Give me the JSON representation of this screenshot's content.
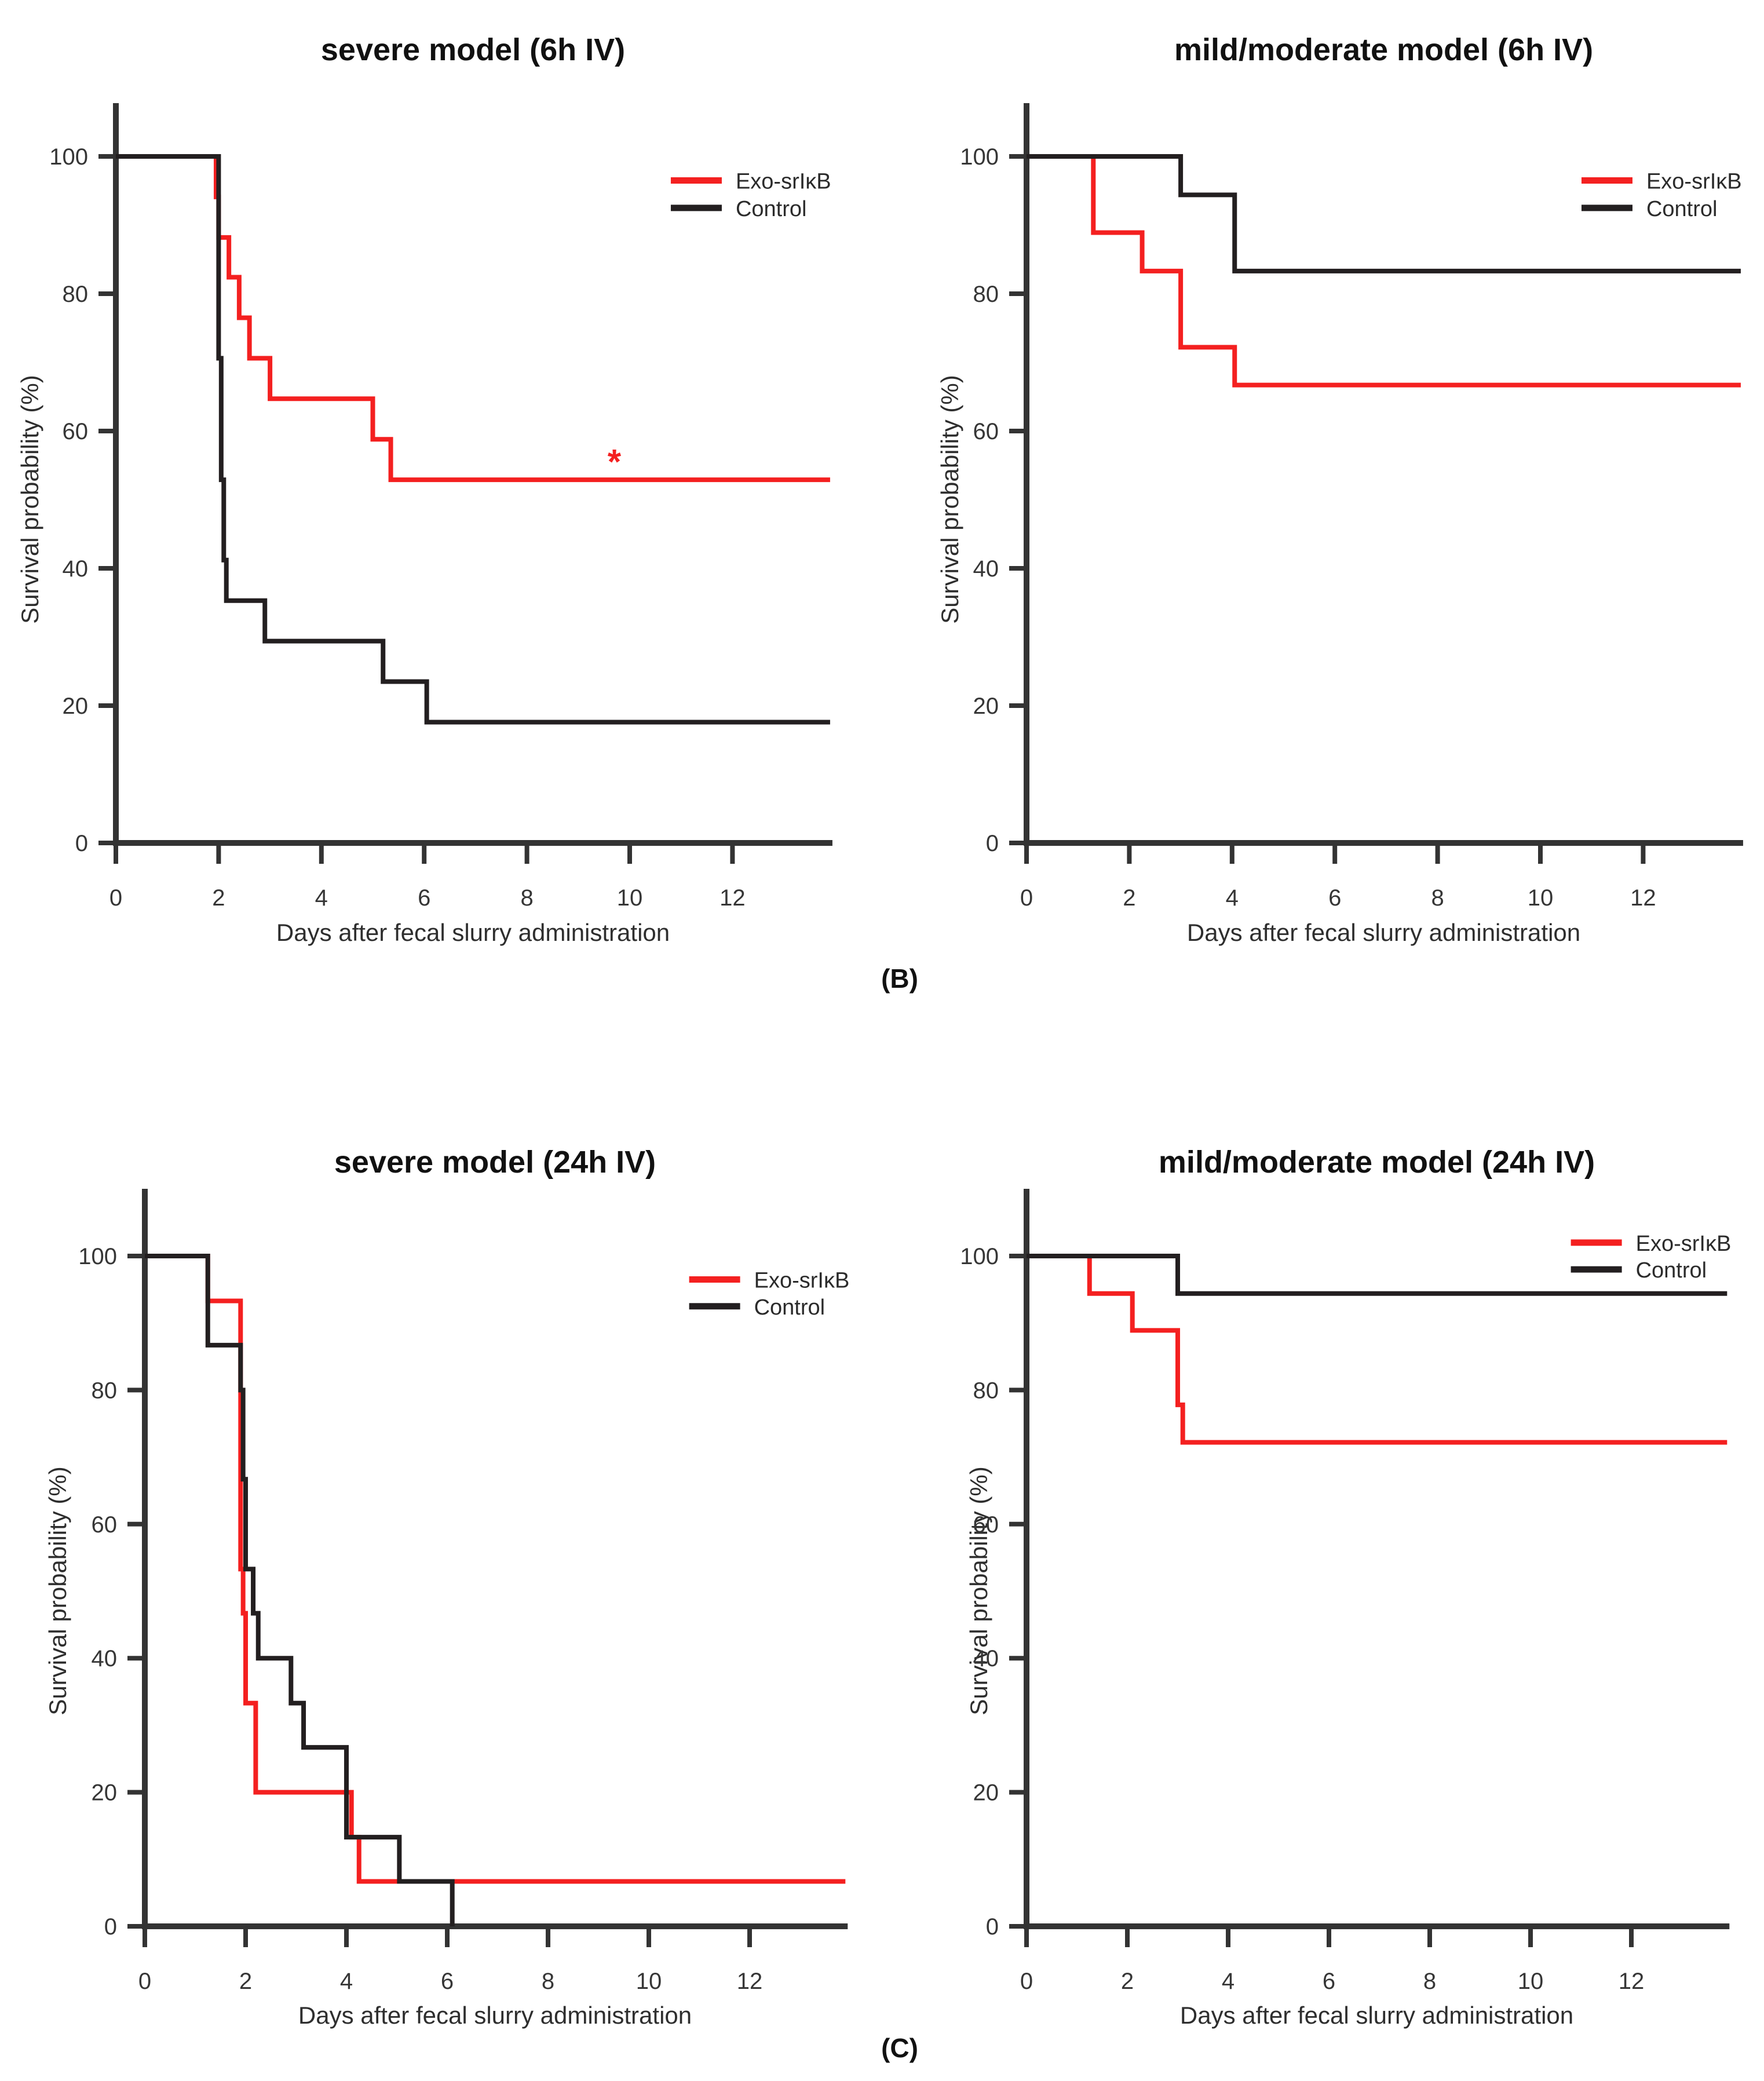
{
  "figure": {
    "panel_label_b": "(B)",
    "panel_label_c": "(C)",
    "background_color": "#ffffff",
    "exo_color": "#f42020",
    "control_color": "#231f20",
    "axis_color": "#333333",
    "tick_text_color": "#363636"
  },
  "chart_data": [
    {
      "type": "step",
      "title": "severe model (6h IV)",
      "xlabel": "Days after fecal slurry administration",
      "ylabel": "Survival probability (%)",
      "x_ticks": [
        0,
        2,
        4,
        6,
        8,
        10,
        12
      ],
      "y_ticks": [
        0,
        20,
        40,
        60,
        80,
        100
      ],
      "xlim": [
        0,
        13.9
      ],
      "ylim": [
        0,
        100
      ],
      "grid": false,
      "legend_position": "inside-upper-right",
      "legend_x_day": 10.8,
      "legend_rows_pct": [
        96.5,
        92.5
      ],
      "series": [
        {
          "name": "Exo-srIκB",
          "color": "#f42020",
          "start": 100,
          "x_end": 13.9,
          "steps": [
            [
              1.95,
              94.1
            ],
            [
              2.0,
              88.2
            ],
            [
              2.2,
              82.4
            ],
            [
              2.4,
              76.5
            ],
            [
              2.6,
              70.6
            ],
            [
              3.0,
              64.7
            ],
            [
              5.0,
              58.8
            ],
            [
              5.35,
              52.9
            ]
          ]
        },
        {
          "name": "Control",
          "color": "#231f20",
          "start": 100,
          "x_end": 13.9,
          "steps": [
            [
              2.0,
              70.6
            ],
            [
              2.05,
              52.9
            ],
            [
              2.1,
              41.2
            ],
            [
              2.15,
              35.3
            ],
            [
              2.9,
              29.4
            ],
            [
              5.2,
              23.5
            ],
            [
              6.05,
              17.6
            ]
          ]
        }
      ],
      "annotations": [
        {
          "text": "*",
          "x": 9.7,
          "y": 56.5,
          "color": "#f42020"
        }
      ]
    },
    {
      "type": "step",
      "title": "mild/moderate model (6h IV)",
      "xlabel": "Days after fecal slurry administration",
      "ylabel": "Survival probability (%)",
      "x_ticks": [
        0,
        2,
        4,
        6,
        8,
        10,
        12
      ],
      "y_ticks": [
        0,
        20,
        40,
        60,
        80,
        100
      ],
      "xlim": [
        0,
        13.9
      ],
      "ylim": [
        0,
        100
      ],
      "grid": false,
      "legend_position": "inside-upper-right",
      "legend_x_day": 10.8,
      "legend_rows_pct": [
        96.5,
        92.5
      ],
      "series": [
        {
          "name": "Exo-srIκB",
          "color": "#f42020",
          "start": 100,
          "x_end": 13.9,
          "steps": [
            [
              1.3,
              88.9
            ],
            [
              2.25,
              83.3
            ],
            [
              3.0,
              72.2
            ],
            [
              4.05,
              66.7
            ]
          ]
        },
        {
          "name": "Control",
          "color": "#231f20",
          "start": 100,
          "x_end": 13.9,
          "steps": [
            [
              3.0,
              94.4
            ],
            [
              4.05,
              83.3
            ]
          ]
        }
      ],
      "annotations": []
    },
    {
      "type": "step",
      "title": "severe model (24h IV)",
      "xlabel": "Days after fecal slurry administration",
      "ylabel": "Survival probability (%)",
      "x_ticks": [
        0,
        2,
        4,
        6,
        8,
        10,
        12
      ],
      "y_ticks": [
        0,
        20,
        40,
        60,
        80,
        100
      ],
      "xlim": [
        0,
        13.9
      ],
      "ylim": [
        0,
        100
      ],
      "grid": false,
      "legend_position": "inside-upper-right",
      "legend_x_day": 10.8,
      "legend_rows_pct": [
        96.5,
        92.5
      ],
      "series": [
        {
          "name": "Exo-srIκB",
          "color": "#f42020",
          "start": 100,
          "x_end": 13.9,
          "steps": [
            [
              1.25,
              93.3
            ],
            [
              1.9,
              53.3
            ],
            [
              1.95,
              46.7
            ],
            [
              2.0,
              33.3
            ],
            [
              2.2,
              20
            ],
            [
              4.1,
              13.3
            ],
            [
              4.25,
              6.7
            ]
          ]
        },
        {
          "name": "Control",
          "color": "#231f20",
          "start": 100,
          "x_end": 6.1,
          "steps": [
            [
              1.25,
              86.7
            ],
            [
              1.9,
              80
            ],
            [
              1.95,
              66.7
            ],
            [
              2.0,
              53.3
            ],
            [
              2.15,
              46.7
            ],
            [
              2.25,
              40
            ],
            [
              2.9,
              33.3
            ],
            [
              3.15,
              26.7
            ],
            [
              4.0,
              13.3
            ],
            [
              5.05,
              6.7
            ],
            [
              6.1,
              0
            ]
          ]
        }
      ],
      "annotations": []
    },
    {
      "type": "step",
      "title": "mild/moderate model (24h IV)",
      "xlabel": "Days after fecal slurry administration",
      "ylabel": "Survival probability (%)",
      "x_ticks": [
        0,
        2,
        4,
        6,
        8,
        10,
        12
      ],
      "y_ticks": [
        0,
        20,
        40,
        60,
        80,
        100
      ],
      "xlim": [
        0,
        13.9
      ],
      "ylim": [
        0,
        100
      ],
      "grid": false,
      "legend_position": "inside-upper-right",
      "legend_x_day": 10.8,
      "legend_rows_pct": [
        102,
        98
      ],
      "series": [
        {
          "name": "Exo-srIκB",
          "color": "#f42020",
          "start": 100,
          "x_end": 13.9,
          "steps": [
            [
              1.25,
              94.4
            ],
            [
              2.1,
              88.9
            ],
            [
              3.0,
              77.8
            ],
            [
              3.1,
              72.2
            ]
          ]
        },
        {
          "name": "Control",
          "color": "#231f20",
          "start": 100,
          "x_end": 13.9,
          "steps": [
            [
              3.0,
              94.4
            ]
          ]
        }
      ],
      "annotations": []
    }
  ]
}
